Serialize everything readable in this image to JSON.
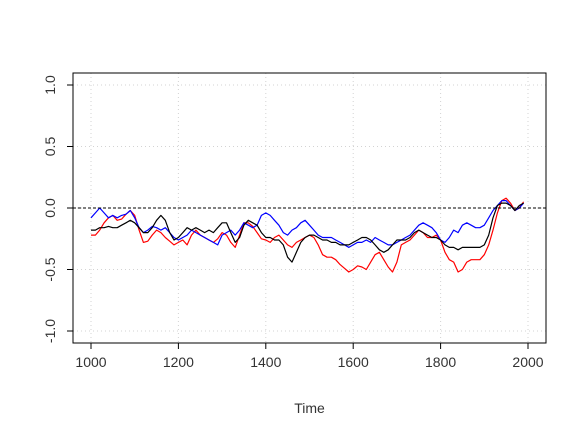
{
  "chart_data": {
    "type": "line",
    "title": "",
    "xlabel": "Time",
    "ylabel": "",
    "xlim": [
      1000,
      2000
    ],
    "ylim": [
      -1.0,
      1.0
    ],
    "x_ticks": [
      1000,
      1200,
      1400,
      1600,
      1800,
      2000
    ],
    "y_ticks": [
      -1.0,
      -0.5,
      0.0,
      0.5,
      1.0
    ],
    "x_tick_labels": [
      "1000",
      "1200",
      "1400",
      "1600",
      "1800",
      "2000"
    ],
    "y_tick_labels": [
      "-1.0",
      "-0.5",
      "0.0",
      "0.5",
      "1.0"
    ],
    "grid": true,
    "reference_line": {
      "y": 0.0,
      "style": "dashed",
      "color": "#000000"
    },
    "series": [
      {
        "color": "#ff0000",
        "x": [
          1000,
          1010,
          1020,
          1030,
          1040,
          1050,
          1060,
          1070,
          1080,
          1090,
          1100,
          1110,
          1120,
          1130,
          1140,
          1150,
          1160,
          1170,
          1180,
          1190,
          1200,
          1210,
          1220,
          1230,
          1240,
          1250,
          1260,
          1270,
          1280,
          1290,
          1300,
          1310,
          1320,
          1330,
          1340,
          1350,
          1360,
          1370,
          1380,
          1390,
          1400,
          1410,
          1420,
          1430,
          1440,
          1450,
          1460,
          1470,
          1480,
          1490,
          1500,
          1510,
          1520,
          1530,
          1540,
          1550,
          1560,
          1570,
          1580,
          1590,
          1600,
          1610,
          1620,
          1630,
          1640,
          1650,
          1660,
          1670,
          1680,
          1690,
          1700,
          1710,
          1720,
          1730,
          1740,
          1750,
          1760,
          1770,
          1780,
          1790,
          1800,
          1810,
          1820,
          1830,
          1840,
          1850,
          1860,
          1870,
          1880,
          1890,
          1900,
          1910,
          1920,
          1930,
          1940,
          1950,
          1960,
          1970,
          1980,
          1990
        ],
        "y": [
          -0.22,
          -0.22,
          -0.18,
          -0.12,
          -0.08,
          -0.06,
          -0.1,
          -0.09,
          -0.05,
          -0.02,
          -0.06,
          -0.18,
          -0.28,
          -0.27,
          -0.22,
          -0.18,
          -0.2,
          -0.24,
          -0.27,
          -0.3,
          -0.28,
          -0.26,
          -0.3,
          -0.22,
          -0.18,
          -0.22,
          -0.24,
          -0.26,
          -0.28,
          -0.25,
          -0.2,
          -0.22,
          -0.28,
          -0.32,
          -0.22,
          -0.12,
          -0.12,
          -0.15,
          -0.2,
          -0.25,
          -0.26,
          -0.28,
          -0.24,
          -0.22,
          -0.26,
          -0.3,
          -0.32,
          -0.28,
          -0.26,
          -0.24,
          -0.22,
          -0.24,
          -0.3,
          -0.38,
          -0.4,
          -0.4,
          -0.42,
          -0.46,
          -0.49,
          -0.52,
          -0.5,
          -0.47,
          -0.48,
          -0.5,
          -0.44,
          -0.38,
          -0.36,
          -0.42,
          -0.48,
          -0.52,
          -0.44,
          -0.3,
          -0.28,
          -0.26,
          -0.22,
          -0.18,
          -0.2,
          -0.24,
          -0.24,
          -0.22,
          -0.26,
          -0.36,
          -0.42,
          -0.44,
          -0.52,
          -0.5,
          -0.44,
          -0.42,
          -0.42,
          -0.42,
          -0.38,
          -0.3,
          -0.18,
          -0.04,
          0.06,
          0.08,
          0.04,
          -0.02,
          0.0,
          0.05
        ]
      },
      {
        "color": "#0000ff",
        "x": [
          1000,
          1010,
          1020,
          1030,
          1040,
          1050,
          1060,
          1070,
          1080,
          1090,
          1100,
          1110,
          1120,
          1130,
          1140,
          1150,
          1160,
          1170,
          1180,
          1190,
          1200,
          1210,
          1220,
          1230,
          1240,
          1250,
          1260,
          1270,
          1280,
          1290,
          1300,
          1310,
          1320,
          1330,
          1340,
          1350,
          1360,
          1370,
          1380,
          1390,
          1400,
          1410,
          1420,
          1430,
          1440,
          1450,
          1460,
          1470,
          1480,
          1490,
          1500,
          1510,
          1520,
          1530,
          1540,
          1550,
          1560,
          1570,
          1580,
          1590,
          1600,
          1610,
          1620,
          1630,
          1640,
          1650,
          1660,
          1670,
          1680,
          1690,
          1700,
          1710,
          1720,
          1730,
          1740,
          1750,
          1760,
          1770,
          1780,
          1790,
          1800,
          1810,
          1820,
          1830,
          1840,
          1850,
          1860,
          1870,
          1880,
          1890,
          1900,
          1910,
          1920,
          1930,
          1940,
          1950,
          1960,
          1970,
          1980,
          1990
        ],
        "y": [
          -0.08,
          -0.04,
          0.0,
          -0.04,
          -0.08,
          -0.06,
          -0.08,
          -0.06,
          -0.05,
          -0.02,
          -0.08,
          -0.16,
          -0.2,
          -0.18,
          -0.15,
          -0.16,
          -0.18,
          -0.16,
          -0.2,
          -0.24,
          -0.26,
          -0.24,
          -0.22,
          -0.18,
          -0.2,
          -0.22,
          -0.24,
          -0.26,
          -0.28,
          -0.3,
          -0.22,
          -0.2,
          -0.18,
          -0.22,
          -0.18,
          -0.12,
          -0.14,
          -0.16,
          -0.14,
          -0.06,
          -0.04,
          -0.06,
          -0.1,
          -0.14,
          -0.2,
          -0.22,
          -0.18,
          -0.16,
          -0.12,
          -0.1,
          -0.14,
          -0.18,
          -0.22,
          -0.24,
          -0.24,
          -0.24,
          -0.26,
          -0.28,
          -0.3,
          -0.32,
          -0.3,
          -0.28,
          -0.28,
          -0.26,
          -0.28,
          -0.24,
          -0.26,
          -0.28,
          -0.3,
          -0.3,
          -0.28,
          -0.26,
          -0.24,
          -0.22,
          -0.18,
          -0.14,
          -0.12,
          -0.14,
          -0.16,
          -0.2,
          -0.26,
          -0.28,
          -0.24,
          -0.18,
          -0.2,
          -0.14,
          -0.12,
          -0.14,
          -0.16,
          -0.16,
          -0.14,
          -0.08,
          -0.02,
          0.02,
          0.06,
          0.06,
          0.02,
          -0.02,
          0.0,
          0.04
        ]
      },
      {
        "color": "#000000",
        "x": [
          1000,
          1010,
          1020,
          1030,
          1040,
          1050,
          1060,
          1070,
          1080,
          1090,
          1100,
          1110,
          1120,
          1130,
          1140,
          1150,
          1160,
          1170,
          1180,
          1190,
          1200,
          1210,
          1220,
          1230,
          1240,
          1250,
          1260,
          1270,
          1280,
          1290,
          1300,
          1310,
          1320,
          1330,
          1340,
          1350,
          1360,
          1370,
          1380,
          1390,
          1400,
          1410,
          1420,
          1430,
          1440,
          1450,
          1460,
          1470,
          1480,
          1490,
          1500,
          1510,
          1520,
          1530,
          1540,
          1550,
          1560,
          1570,
          1580,
          1590,
          1600,
          1610,
          1620,
          1630,
          1640,
          1650,
          1660,
          1670,
          1680,
          1690,
          1700,
          1710,
          1720,
          1730,
          1740,
          1750,
          1760,
          1770,
          1780,
          1790,
          1800,
          1810,
          1820,
          1830,
          1840,
          1850,
          1860,
          1870,
          1880,
          1890,
          1900,
          1910,
          1920,
          1930,
          1940,
          1950,
          1960,
          1970,
          1980,
          1990
        ],
        "y": [
          -0.18,
          -0.18,
          -0.16,
          -0.16,
          -0.15,
          -0.16,
          -0.16,
          -0.14,
          -0.12,
          -0.1,
          -0.12,
          -0.16,
          -0.2,
          -0.2,
          -0.16,
          -0.1,
          -0.06,
          -0.1,
          -0.2,
          -0.26,
          -0.24,
          -0.2,
          -0.16,
          -0.18,
          -0.16,
          -0.18,
          -0.2,
          -0.18,
          -0.2,
          -0.16,
          -0.12,
          -0.12,
          -0.2,
          -0.28,
          -0.24,
          -0.14,
          -0.1,
          -0.12,
          -0.14,
          -0.2,
          -0.24,
          -0.24,
          -0.26,
          -0.26,
          -0.3,
          -0.4,
          -0.44,
          -0.36,
          -0.28,
          -0.24,
          -0.22,
          -0.22,
          -0.24,
          -0.26,
          -0.26,
          -0.28,
          -0.28,
          -0.3,
          -0.3,
          -0.3,
          -0.28,
          -0.26,
          -0.24,
          -0.24,
          -0.26,
          -0.3,
          -0.34,
          -0.36,
          -0.34,
          -0.3,
          -0.26,
          -0.26,
          -0.26,
          -0.24,
          -0.2,
          -0.18,
          -0.2,
          -0.22,
          -0.24,
          -0.24,
          -0.26,
          -0.3,
          -0.32,
          -0.32,
          -0.34,
          -0.32,
          -0.32,
          -0.32,
          -0.32,
          -0.32,
          -0.3,
          -0.22,
          -0.08,
          0.02,
          0.04,
          0.04,
          0.02,
          -0.02,
          0.02,
          0.04
        ]
      }
    ]
  }
}
